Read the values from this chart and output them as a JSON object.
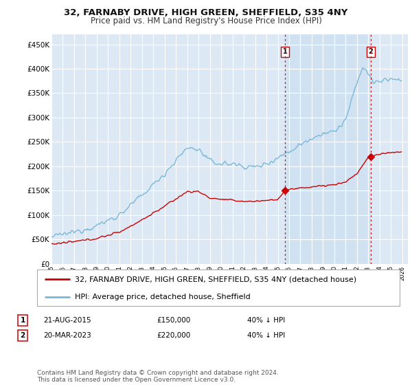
{
  "title": "32, FARNABY DRIVE, HIGH GREEN, SHEFFIELD, S35 4NY",
  "subtitle": "Price paid vs. HM Land Registry's House Price Index (HPI)",
  "ylabel_ticks": [
    "£0",
    "£50K",
    "£100K",
    "£150K",
    "£200K",
    "£250K",
    "£300K",
    "£350K",
    "£400K",
    "£450K"
  ],
  "ytick_values": [
    0,
    50000,
    100000,
    150000,
    200000,
    250000,
    300000,
    350000,
    400000,
    450000
  ],
  "ylim": [
    0,
    470000
  ],
  "xlim_start": 1995.0,
  "xlim_end": 2026.5,
  "background_color": "#ffffff",
  "plot_bg_color": "#dce9f5",
  "grid_color": "#ffffff",
  "hpi_color": "#7ab8d9",
  "property_color": "#cc0000",
  "sale1_date": 2015.64,
  "sale1_price": 150000,
  "sale2_date": 2023.22,
  "sale2_price": 220000,
  "vline_color": "#cc0000",
  "legend_label1": "32, FARNABY DRIVE, HIGH GREEN, SHEFFIELD, S35 4NY (detached house)",
  "legend_label2": "HPI: Average price, detached house, Sheffield",
  "table_row1": [
    "1",
    "21-AUG-2015",
    "£150,000",
    "40% ↓ HPI"
  ],
  "table_row2": [
    "2",
    "20-MAR-2023",
    "£220,000",
    "40% ↓ HPI"
  ],
  "footer": "Contains HM Land Registry data © Crown copyright and database right 2024.\nThis data is licensed under the Open Government Licence v3.0.",
  "title_fontsize": 9.5,
  "subtitle_fontsize": 8.5,
  "tick_fontsize": 7.5,
  "legend_fontsize": 8,
  "footer_fontsize": 6.5,
  "shade_color": "#cce0f0"
}
